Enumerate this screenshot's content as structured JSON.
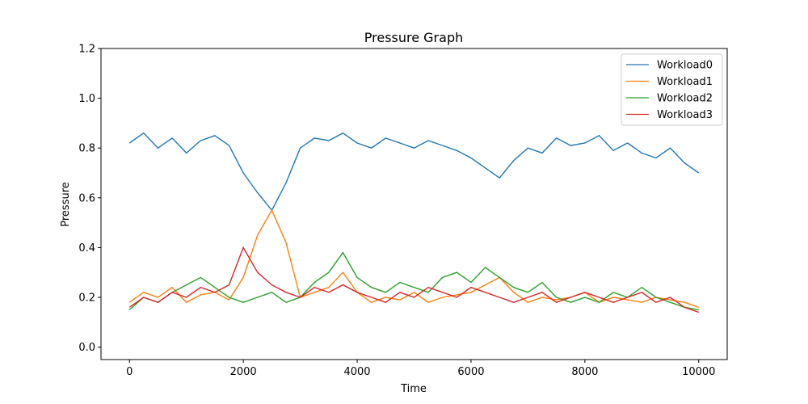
{
  "chart_data": {
    "type": "line",
    "title": "Pressure Graph",
    "xlabel": "Time",
    "ylabel": "Pressure",
    "xlim": [
      -500,
      10500
    ],
    "ylim": [
      -0.05,
      1.2
    ],
    "xticks": [
      0,
      2000,
      4000,
      6000,
      8000,
      10000
    ],
    "xtick_labels": [
      "0",
      "2000",
      "4000",
      "6000",
      "8000",
      "10000"
    ],
    "yticks": [
      0.0,
      0.2,
      0.4,
      0.6,
      0.8,
      1.0,
      1.2
    ],
    "ytick_labels": [
      "0.0",
      "0.2",
      "0.4",
      "0.6",
      "0.8",
      "1.0",
      "1.2"
    ],
    "grid": false,
    "legend_position": "top-right",
    "x": [
      0,
      250,
      500,
      750,
      1000,
      1250,
      1500,
      1750,
      2000,
      2250,
      2500,
      2750,
      3000,
      3250,
      3500,
      3750,
      4000,
      4250,
      4500,
      4750,
      5000,
      5250,
      5500,
      5750,
      6000,
      6250,
      6500,
      6750,
      7000,
      7250,
      7500,
      7750,
      8000,
      8250,
      8500,
      8750,
      9000,
      9250,
      9500,
      9750,
      10000
    ],
    "series": [
      {
        "name": "Workload0",
        "color": "#1f77b4",
        "values": [
          0.82,
          0.86,
          0.8,
          0.84,
          0.78,
          0.83,
          0.85,
          0.81,
          0.7,
          0.62,
          0.55,
          0.66,
          0.8,
          0.84,
          0.83,
          0.86,
          0.82,
          0.8,
          0.84,
          0.82,
          0.8,
          0.83,
          0.81,
          0.79,
          0.76,
          0.72,
          0.68,
          0.75,
          0.8,
          0.78,
          0.84,
          0.81,
          0.82,
          0.85,
          0.79,
          0.82,
          0.78,
          0.76,
          0.8,
          0.74,
          0.7
        ]
      },
      {
        "name": "Workload1",
        "color": "#ff7f0e",
        "values": [
          0.18,
          0.22,
          0.2,
          0.24,
          0.18,
          0.21,
          0.22,
          0.19,
          0.28,
          0.45,
          0.55,
          0.42,
          0.2,
          0.22,
          0.24,
          0.3,
          0.22,
          0.18,
          0.2,
          0.19,
          0.22,
          0.18,
          0.2,
          0.21,
          0.22,
          0.25,
          0.28,
          0.22,
          0.18,
          0.2,
          0.19,
          0.2,
          0.22,
          0.18,
          0.2,
          0.19,
          0.18,
          0.2,
          0.19,
          0.18,
          0.16
        ]
      },
      {
        "name": "Workload2",
        "color": "#2ca02c",
        "values": [
          0.15,
          0.2,
          0.18,
          0.22,
          0.25,
          0.28,
          0.24,
          0.2,
          0.18,
          0.2,
          0.22,
          0.18,
          0.2,
          0.26,
          0.3,
          0.38,
          0.28,
          0.24,
          0.22,
          0.26,
          0.24,
          0.22,
          0.28,
          0.3,
          0.26,
          0.32,
          0.28,
          0.24,
          0.22,
          0.26,
          0.2,
          0.18,
          0.2,
          0.18,
          0.22,
          0.2,
          0.24,
          0.2,
          0.18,
          0.16,
          0.15
        ]
      },
      {
        "name": "Workload3",
        "color": "#d62728",
        "values": [
          0.16,
          0.2,
          0.18,
          0.22,
          0.2,
          0.24,
          0.22,
          0.25,
          0.4,
          0.3,
          0.25,
          0.22,
          0.2,
          0.24,
          0.22,
          0.25,
          0.22,
          0.2,
          0.18,
          0.22,
          0.2,
          0.24,
          0.22,
          0.2,
          0.24,
          0.22,
          0.2,
          0.18,
          0.2,
          0.22,
          0.18,
          0.2,
          0.22,
          0.2,
          0.18,
          0.2,
          0.22,
          0.18,
          0.2,
          0.16,
          0.14
        ]
      }
    ]
  }
}
